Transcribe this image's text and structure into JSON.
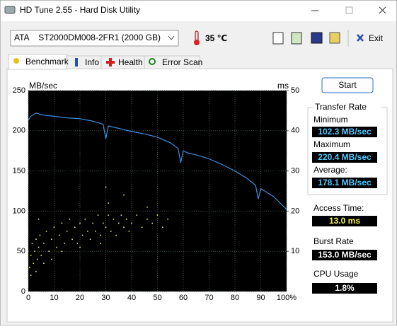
{
  "window": {
    "title": "HD Tune 2.55 - Hard Disk Utility"
  },
  "toolbar": {
    "drive": "ATA    ST2000DM008-2FR1 (2000 GB)",
    "temperature": "35 ℃",
    "exit": "Exit"
  },
  "tabs": [
    "Benchmark",
    "Info",
    "Health",
    "Error Scan"
  ],
  "chart_data": {
    "type": "line",
    "y_label": "MB/sec",
    "y2_label": "ms",
    "xlim": [
      0,
      100
    ],
    "xticks": [
      0,
      10,
      20,
      30,
      40,
      50,
      60,
      70,
      80,
      90,
      {
        "value": 100,
        "label": "100%"
      }
    ],
    "ylim": [
      0,
      250
    ],
    "yticks": [
      0,
      50,
      100,
      150,
      200,
      250
    ],
    "y2lim": [
      0,
      50
    ],
    "y2ticks": [
      10,
      20,
      30,
      40,
      50
    ],
    "grid": true,
    "x": [
      0,
      1,
      3,
      5,
      10,
      15,
      20,
      25,
      29,
      30,
      31,
      35,
      40,
      45,
      50,
      55,
      58,
      59,
      60,
      62,
      65,
      70,
      75,
      80,
      85,
      88,
      89,
      90,
      91,
      95,
      100
    ],
    "series": [
      {
        "type": "line",
        "color": "#3d8fe0",
        "values": [
          213,
          218,
          222,
          220,
          218,
          216,
          215,
          212,
          208,
          190,
          206,
          203,
          199,
          196,
          192,
          185,
          178,
          160,
          175,
          172,
          170,
          165,
          158,
          150,
          140,
          132,
          115,
          128,
          126,
          118,
          102
        ]
      },
      {
        "type": "scatter",
        "color": "#e8e870",
        "axis": "y2",
        "x": [
          0.5,
          1,
          1.5,
          2,
          2.5,
          3,
          3.5,
          4,
          4.5,
          5,
          6,
          7,
          8,
          9,
          10,
          11,
          12,
          13,
          14,
          15,
          16,
          17,
          18,
          19,
          20,
          21,
          22,
          23,
          24,
          25,
          26,
          27,
          28,
          29,
          30,
          31,
          32,
          33,
          34,
          35,
          36,
          37,
          38,
          39,
          40,
          42,
          44,
          46,
          48,
          50,
          52,
          54,
          1,
          3,
          6,
          9,
          13,
          20,
          28,
          31,
          37,
          46,
          30,
          4
        ],
        "values": [
          6,
          9,
          12,
          7,
          10,
          13,
          8,
          11,
          14,
          9,
          12,
          15,
          10,
          13,
          16,
          11,
          14,
          17,
          12,
          15,
          18,
          13,
          16,
          12,
          17,
          14,
          18,
          15,
          13,
          17,
          15,
          19,
          14,
          17,
          16,
          19,
          15,
          18,
          14,
          17,
          19,
          16,
          18,
          15,
          17,
          19,
          16,
          18,
          17,
          19,
          16,
          18,
          4,
          5,
          7,
          8,
          10,
          11,
          12,
          22,
          24,
          21,
          26,
          18
        ]
      }
    ]
  },
  "panel": {
    "start": "Start",
    "transfer_rate": {
      "title": "Transfer Rate",
      "minimum": {
        "label": "Minimum",
        "value": "102.3 MB/sec"
      },
      "maximum": {
        "label": "Maximum",
        "value": "220.4 MB/sec"
      },
      "average": {
        "label": "Average:",
        "value": "178.1 MB/sec"
      }
    },
    "access_time": {
      "label": "Access Time:",
      "value": "13.0 ms"
    },
    "burst_rate": {
      "label": "Burst Rate",
      "value": "153.0 MB/sec"
    },
    "cpu_usage": {
      "label": "CPU Usage",
      "value": "1.8%"
    }
  }
}
